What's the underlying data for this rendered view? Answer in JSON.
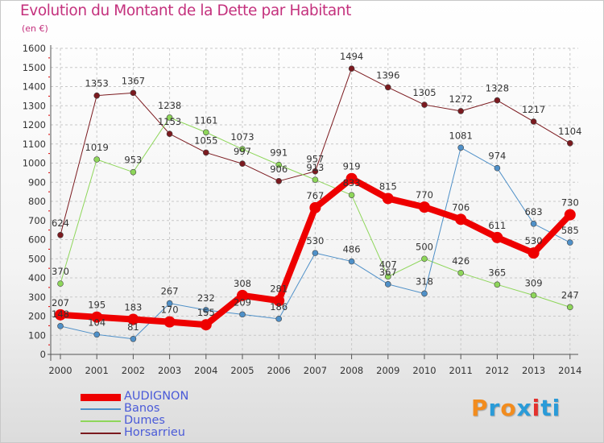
{
  "title": "Evolution du Montant de la Dette par Habitant",
  "subtitle": "(en €)",
  "logo": {
    "text": "Proxiti",
    "colors": [
      "#f28c1e",
      "#2a9bd8",
      "#f28c1e",
      "#2a9bd8",
      "#e3312d",
      "#2a9bd8",
      "#2a9bd8"
    ]
  },
  "chart_data": {
    "type": "line",
    "x": [
      "2000",
      "2001",
      "2002",
      "2003",
      "2004",
      "2005",
      "2006",
      "2007",
      "2008",
      "2009",
      "2010",
      "2011",
      "2012",
      "2013",
      "2014"
    ],
    "ylim": [
      0,
      1600
    ],
    "yticks": [
      0,
      100,
      200,
      300,
      400,
      500,
      600,
      700,
      800,
      900,
      1000,
      1100,
      1200,
      1300,
      1400,
      1500,
      1600
    ],
    "grid": true,
    "legend_position": "bottom-left",
    "series": [
      {
        "name": "Horsarrieu",
        "color": "#7b1a1f",
        "width": 1,
        "values": [
          624,
          1353,
          1367,
          1153,
          1055,
          997,
          906,
          957,
          1494,
          1396,
          1305,
          1272,
          1328,
          1217,
          1104
        ]
      },
      {
        "name": "Dumes",
        "color": "#8ed65a",
        "width": 1,
        "values": [
          370,
          1019,
          953,
          1238,
          1161,
          1073,
          991,
          913,
          833,
          407,
          500,
          426,
          365,
          309,
          247
        ]
      },
      {
        "name": "Banos",
        "color": "#4f90c8",
        "width": 1,
        "values": [
          148,
          104,
          81,
          267,
          232,
          209,
          186,
          530,
          486,
          367,
          318,
          1081,
          974,
          683,
          585
        ]
      },
      {
        "name": "AUDIGNON",
        "color": "#ee0000",
        "width": 8,
        "values": [
          207,
          195,
          183,
          170,
          155,
          308,
          281,
          767,
          919,
          815,
          770,
          706,
          611,
          530,
          730
        ]
      }
    ],
    "legend_order": [
      "AUDIGNON",
      "Banos",
      "Dumes",
      "Horsarrieu"
    ]
  }
}
